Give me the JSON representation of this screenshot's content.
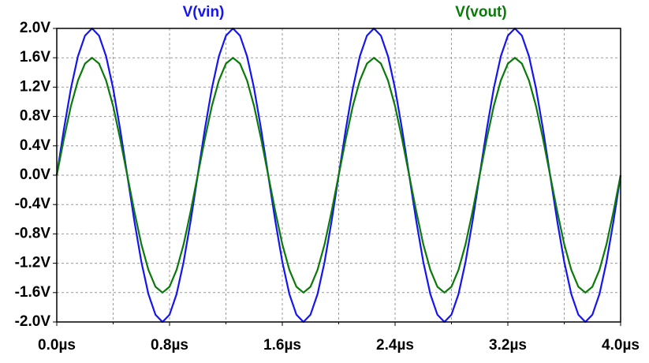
{
  "chart_data": {
    "type": "line",
    "x": [
      0,
      0.05,
      0.1,
      0.15,
      0.2,
      0.25,
      0.3,
      0.35,
      0.4,
      0.45,
      0.5,
      0.55,
      0.6,
      0.65,
      0.7,
      0.75,
      0.8,
      0.85,
      0.9,
      0.95,
      1,
      1.05,
      1.1,
      1.15,
      1.2,
      1.25,
      1.3,
      1.35,
      1.4,
      1.45,
      1.5,
      1.55,
      1.6,
      1.65,
      1.7,
      1.75,
      1.8,
      1.85,
      1.9,
      1.95,
      2,
      2.05,
      2.1,
      2.15,
      2.2,
      2.25,
      2.3,
      2.35,
      2.4,
      2.45,
      2.5,
      2.55,
      2.6,
      2.65,
      2.7,
      2.75,
      2.8,
      2.85,
      2.9,
      2.95,
      3,
      3.05,
      3.1,
      3.15,
      3.2,
      3.25,
      3.3,
      3.35,
      3.4,
      3.45,
      3.5,
      3.55,
      3.6,
      3.65,
      3.7,
      3.75,
      3.8,
      3.85,
      3.9,
      3.95,
      4
    ],
    "series": [
      {
        "name": "V(vin)",
        "color": "#1515f0",
        "values": [
          0,
          0.62,
          1.18,
          1.62,
          1.9,
          2,
          1.9,
          1.62,
          1.18,
          0.62,
          0,
          -0.62,
          -1.18,
          -1.62,
          -1.9,
          -2,
          -1.9,
          -1.62,
          -1.18,
          -0.62,
          0,
          0.62,
          1.18,
          1.62,
          1.9,
          2,
          1.9,
          1.62,
          1.18,
          0.62,
          0,
          -0.62,
          -1.18,
          -1.62,
          -1.9,
          -2,
          -1.9,
          -1.62,
          -1.18,
          -0.62,
          0,
          0.62,
          1.18,
          1.62,
          1.9,
          2,
          1.9,
          1.62,
          1.18,
          0.62,
          0,
          -0.62,
          -1.18,
          -1.62,
          -1.9,
          -2,
          -1.9,
          -1.62,
          -1.18,
          -0.62,
          0,
          0.62,
          1.18,
          1.62,
          1.9,
          2,
          1.9,
          1.62,
          1.18,
          0.62,
          0,
          -0.62,
          -1.18,
          -1.62,
          -1.9,
          -2,
          -1.9,
          -1.62,
          -1.18,
          -0.62,
          0
        ]
      },
      {
        "name": "V(vout)",
        "color": "#0a7a0a",
        "values": [
          0,
          0.49,
          0.94,
          1.29,
          1.52,
          1.6,
          1.52,
          1.29,
          0.94,
          0.49,
          0,
          -0.49,
          -0.94,
          -1.29,
          -1.52,
          -1.6,
          -1.52,
          -1.29,
          -0.94,
          -0.49,
          0,
          0.49,
          0.94,
          1.29,
          1.52,
          1.6,
          1.52,
          1.29,
          0.94,
          0.49,
          0,
          -0.49,
          -0.94,
          -1.29,
          -1.52,
          -1.6,
          -1.52,
          -1.29,
          -0.94,
          -0.49,
          0,
          0.49,
          0.94,
          1.29,
          1.52,
          1.6,
          1.52,
          1.29,
          0.94,
          0.49,
          0,
          -0.49,
          -0.94,
          -1.29,
          -1.52,
          -1.6,
          -1.52,
          -1.29,
          -0.94,
          -0.49,
          0,
          0.49,
          0.94,
          1.29,
          1.52,
          1.6,
          1.52,
          1.29,
          0.94,
          0.49,
          0,
          -0.49,
          -0.94,
          -1.29,
          -1.52,
          -1.6,
          -1.52,
          -1.29,
          -0.94,
          -0.49,
          0
        ]
      }
    ],
    "xlim": [
      0,
      4
    ],
    "xticks": [
      {
        "value": 0,
        "label": "0.0µs"
      },
      {
        "value": 0.8,
        "label": "0.8µs"
      },
      {
        "value": 1.6,
        "label": "1.6µs"
      },
      {
        "value": 2.4,
        "label": "2.4µs"
      },
      {
        "value": 3.2,
        "label": "3.2µs"
      },
      {
        "value": 4,
        "label": "4.0µs"
      }
    ],
    "xminorticks": [
      0.4,
      1.2,
      2,
      2.8,
      3.6
    ],
    "ylim": [
      -2,
      2
    ],
    "yticks": [
      {
        "value": 2,
        "label": "2.0V"
      },
      {
        "value": 1.6,
        "label": "1.6V"
      },
      {
        "value": 1.2,
        "label": "1.2V"
      },
      {
        "value": 0.8,
        "label": "0.8V"
      },
      {
        "value": 0.4,
        "label": "0.4V"
      },
      {
        "value": 0,
        "label": "0.0V"
      },
      {
        "value": -0.4,
        "label": "-0.4V"
      },
      {
        "value": -0.8,
        "label": "-0.8V"
      },
      {
        "value": -1.2,
        "label": "-1.2V"
      },
      {
        "value": -1.6,
        "label": "-1.6V"
      },
      {
        "value": -2,
        "label": "-2.0V"
      }
    ],
    "grid": true
  }
}
